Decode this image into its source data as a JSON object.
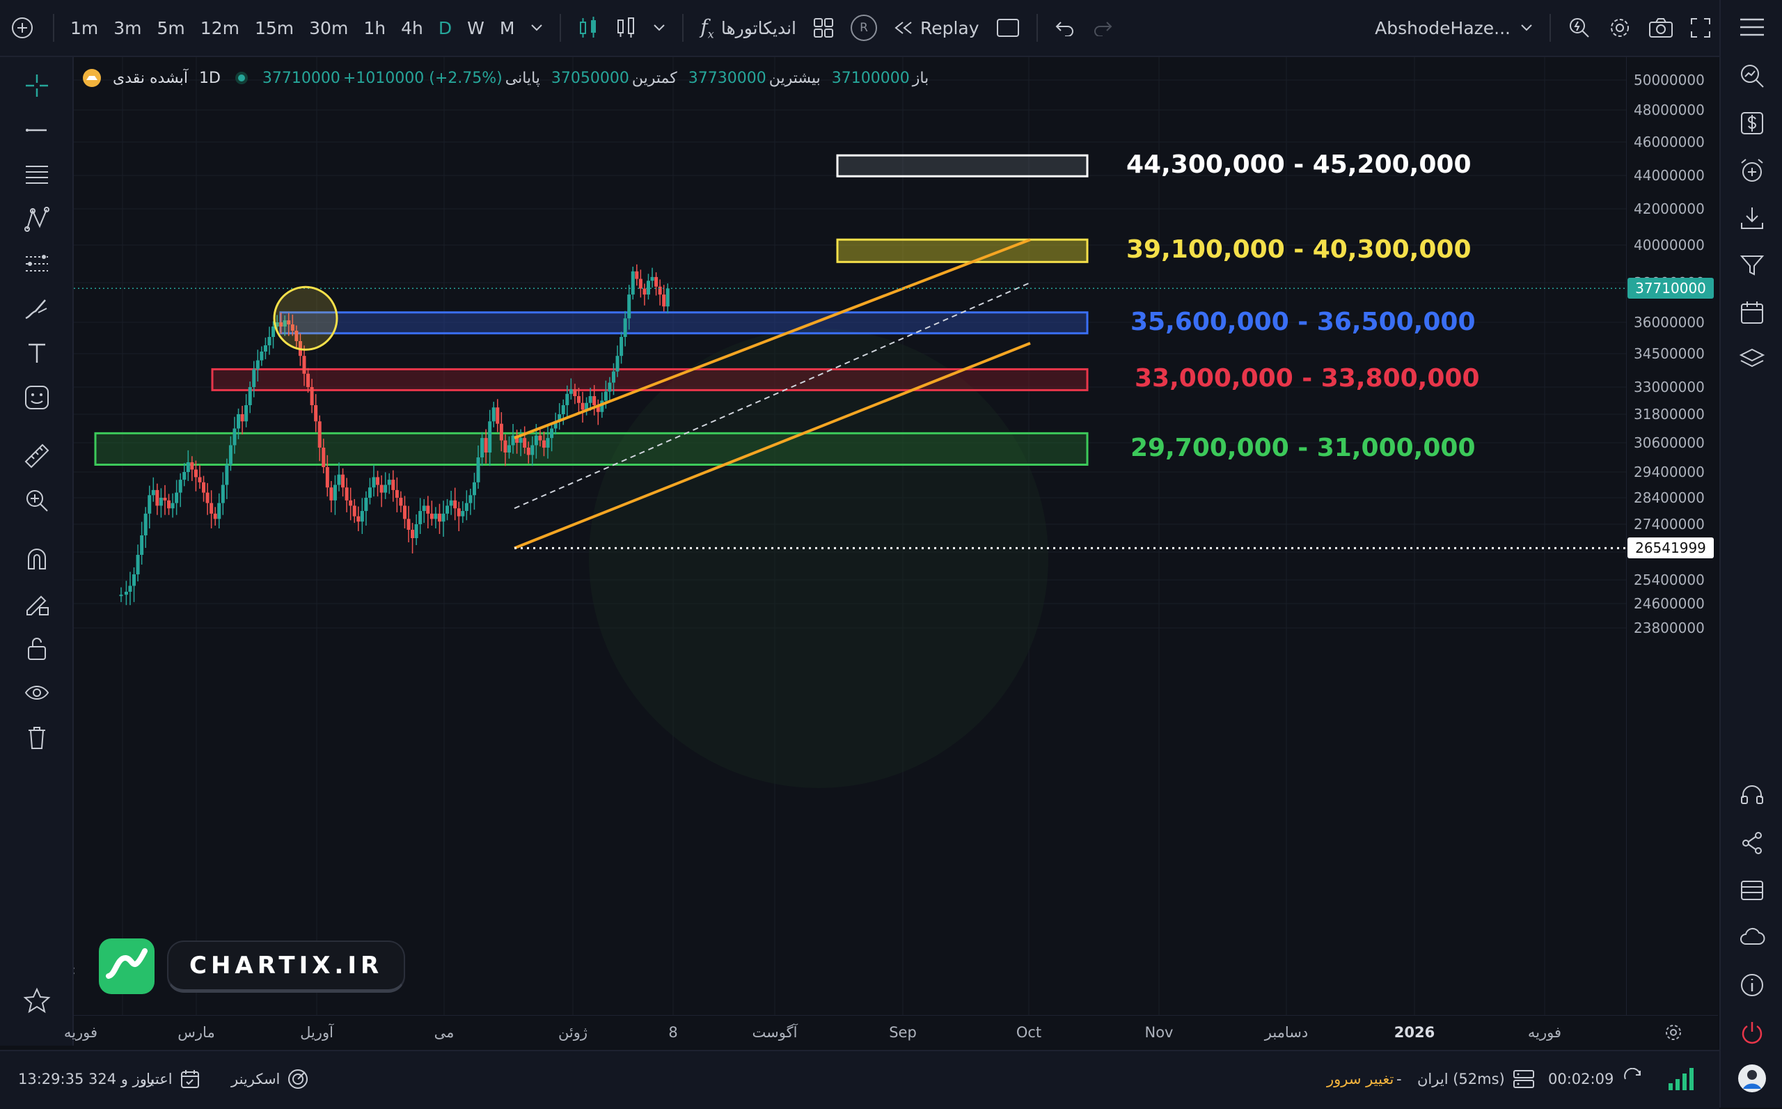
{
  "toolbar": {
    "timeframes": [
      "1m",
      "3m",
      "5m",
      "12m",
      "15m",
      "30m",
      "1h",
      "4h",
      "D",
      "W",
      "M"
    ],
    "active_timeframe": "D",
    "indicators_label": "اندیکاتورها",
    "replay_label": "Replay",
    "replay_badge": "R",
    "symbol_name": "AbshodeHaze..."
  },
  "legend": {
    "symbol": "آبشده نقدی",
    "interval": "1D",
    "open_label": "باز",
    "open_value": "37100000",
    "high_label": "بیشترین",
    "high_value": "37730000",
    "low_label": "کمترین",
    "low_value": "37050000",
    "close_label": "پایانی",
    "close_value": "37710000",
    "change": "+1010000 (+2.75%)"
  },
  "zones": [
    {
      "label": "44,300,000 - 45,200,000",
      "low": 44300000,
      "high": 45200000,
      "color": "#ffffff"
    },
    {
      "label": "39,100,000 - 40,300,000",
      "low": 39100000,
      "high": 40300000,
      "color": "#f5e04a"
    },
    {
      "label": "35,600,000 - 36,500,000",
      "low": 35600000,
      "high": 36500000,
      "color": "#3a6ff5"
    },
    {
      "label": "33,000,000 - 33,800,000",
      "low": 33000000,
      "high": 33800000,
      "color": "#e8364a"
    },
    {
      "label": "29,700,000 - 31,000,000",
      "low": 29700000,
      "high": 31000000,
      "color": "#3cc95a"
    }
  ],
  "price_axis": [
    "50000000",
    "48000000",
    "46000000",
    "44000000",
    "42000000",
    "40000000",
    "38000000",
    "36000000",
    "34500000",
    "33000000",
    "31800000",
    "30600000",
    "29400000",
    "28400000",
    "27400000",
    "26400000",
    "25400000",
    "24600000",
    "23800000"
  ],
  "current_price": "37710000",
  "low_line_price": "26541999",
  "time_axis": [
    "فوریه",
    "مارس",
    "آوریل",
    "می",
    "ژوئن",
    "8",
    "آگوست",
    "Sep",
    "Oct",
    "Nov",
    "دسامبر",
    "2026",
    "فوریه"
  ],
  "watermark": "CHARTIX.IR",
  "status": {
    "session": "13:29:35 324 روز و",
    "credit_label": "اعتبار",
    "screener_label": "اسکرینر",
    "change_server_label": "تغییر سرور",
    "server": "ایران (52ms)",
    "server_dash": "-",
    "timer": "00:02:09"
  }
}
